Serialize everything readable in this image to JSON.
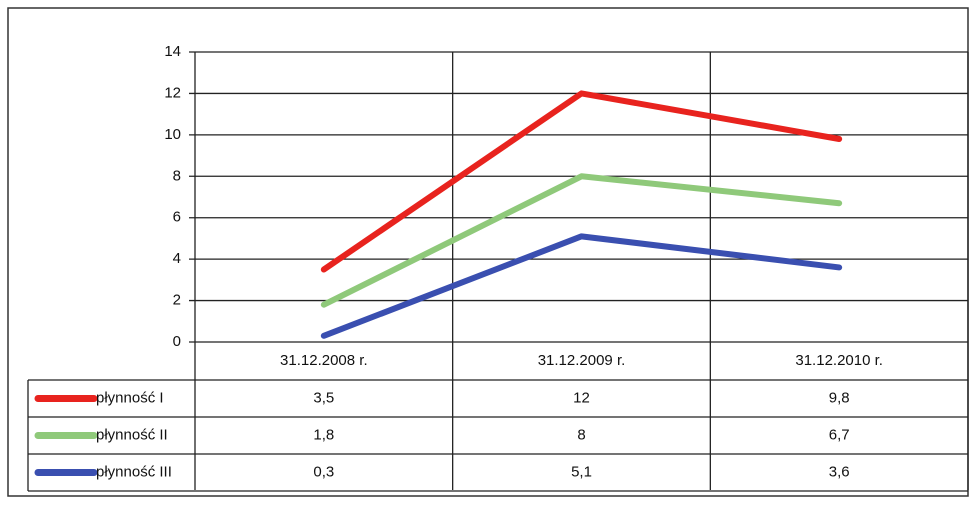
{
  "chart_data": {
    "type": "line",
    "categories": [
      "31.12.2008 r.",
      "31.12.2009 r.",
      "31.12.2010 r."
    ],
    "series": [
      {
        "name": "płynność I",
        "color": "#e8231e",
        "values": [
          3.5,
          12,
          9.8
        ],
        "value_labels": [
          "3,5",
          "12",
          "9,8"
        ]
      },
      {
        "name": "płynność II",
        "color": "#8fc97a",
        "values": [
          1.8,
          8,
          6.7
        ],
        "value_labels": [
          "1,8",
          "8",
          "6,7"
        ]
      },
      {
        "name": "płynność III",
        "color": "#3a4fb0",
        "values": [
          0.3,
          5.1,
          3.6
        ],
        "value_labels": [
          "0,3",
          "5,1",
          "3,6"
        ]
      }
    ],
    "ylim": [
      0,
      14
    ],
    "yticks": [
      0,
      2,
      4,
      6,
      8,
      10,
      12,
      14
    ],
    "grid": true
  }
}
